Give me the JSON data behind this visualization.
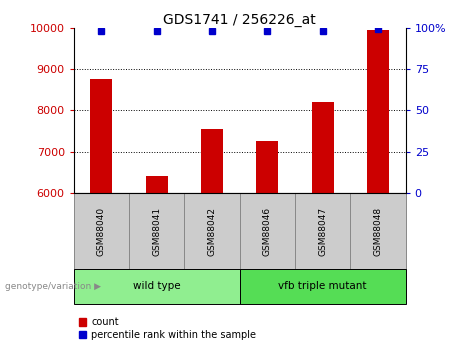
{
  "title": "GDS1741 / 256226_at",
  "samples": [
    "GSM88040",
    "GSM88041",
    "GSM88042",
    "GSM88046",
    "GSM88047",
    "GSM88048"
  ],
  "counts": [
    8750,
    6420,
    7550,
    7250,
    8200,
    9950
  ],
  "percentile_ranks": [
    98,
    98,
    98,
    98,
    98,
    99
  ],
  "ylim_left": [
    6000,
    10000
  ],
  "ylim_right": [
    0,
    100
  ],
  "yticks_left": [
    6000,
    7000,
    8000,
    9000,
    10000
  ],
  "yticks_right": [
    0,
    25,
    50,
    75,
    100
  ],
  "bar_color": "#cc0000",
  "dot_color": "#0000cc",
  "groups": [
    {
      "label": "wild type",
      "color": "#90ee90",
      "start": 0,
      "end": 3
    },
    {
      "label": "vfb triple mutant",
      "color": "#55dd55",
      "start": 3,
      "end": 6
    }
  ],
  "group_label_prefix": "genotype/variation",
  "legend_count_label": "count",
  "legend_pct_label": "percentile rank within the sample",
  "background_cells": "#cccccc",
  "cell_border": "#888888",
  "figsize": [
    4.61,
    3.45
  ],
  "dpi": 100
}
